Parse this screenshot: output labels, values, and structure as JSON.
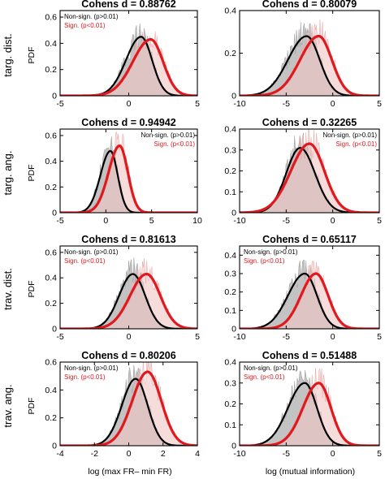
{
  "colors": {
    "nonsig": "#000000",
    "sig": "#e0191f",
    "nonsig_fill": "#b9b9b9",
    "sig_fill": "#f2c4c4"
  },
  "row_labels": [
    "targ. dist.",
    "targ. ang.",
    "trav. dist.",
    "trav. ang."
  ],
  "ylabel": "PDF",
  "xlabels": [
    "log (max FR– min FR)",
    "log (mutual information)"
  ],
  "chart_data": [
    {
      "type": "line",
      "title": "Cohens d = 0.88762",
      "legend": [
        "Non-sign. (p>0.01)",
        "Sign. (p<0.01)"
      ],
      "legend_placement": "top-left",
      "xlim": [
        -5,
        5
      ],
      "ylim": [
        0,
        0.65
      ],
      "xticks": [
        -5,
        0,
        5
      ],
      "yticks": [
        0,
        0.2,
        0.4,
        0.6
      ],
      "ytick_labels": [
        "0",
        "0.2",
        "0.4",
        "0.6"
      ],
      "series": [
        {
          "name": "Non-sign. (p>0.01)",
          "peak_x": 0.9,
          "peak_y": 0.45,
          "sd_left": 1.1,
          "sd_right": 0.8
        },
        {
          "name": "Sign. (p<0.01)",
          "peak_x": 1.6,
          "peak_y": 0.43,
          "sd_left": 1.3,
          "sd_right": 0.9
        }
      ]
    },
    {
      "type": "line",
      "title": "Cohens d = 0.80079",
      "legend": [],
      "legend_placement": "none",
      "xlim": [
        -10,
        5
      ],
      "ylim": [
        0,
        0.4
      ],
      "xticks": [
        -10,
        -5,
        0,
        5
      ],
      "yticks": [
        0,
        0.2,
        0.4
      ],
      "ytick_labels": [
        "0",
        "0.2",
        "0.4"
      ],
      "series": [
        {
          "name": "Non-sign. (p>0.01)",
          "peak_x": -2.8,
          "peak_y": 0.28,
          "sd_left": 2.0,
          "sd_right": 1.4
        },
        {
          "name": "Sign. (p<0.01)",
          "peak_x": -1.5,
          "peak_y": 0.28,
          "sd_left": 2.0,
          "sd_right": 1.4
        }
      ]
    },
    {
      "type": "line",
      "title": "Cohens d = 0.94942",
      "legend": [
        "Non-sign. (p>0.01)",
        "Sign. (p<0.01)"
      ],
      "legend_placement": "top-right",
      "xlim": [
        -5,
        10
      ],
      "ylim": [
        0,
        0.65
      ],
      "xticks": [
        -5,
        0,
        5,
        10
      ],
      "yticks": [
        0,
        0.2,
        0.4,
        0.6
      ],
      "ytick_labels": [
        "0",
        "0.2",
        "0.4",
        "0.6"
      ],
      "series": [
        {
          "name": "Non-sign. (p>0.01)",
          "peak_x": 0.5,
          "peak_y": 0.48,
          "sd_left": 1.1,
          "sd_right": 0.8
        },
        {
          "name": "Sign. (p<0.01)",
          "peak_x": 1.5,
          "peak_y": 0.52,
          "sd_left": 1.2,
          "sd_right": 0.9
        }
      ]
    },
    {
      "type": "line",
      "title": "Cohens d = 0.32265",
      "legend": [
        "Non-sign. (p>0.01)",
        "Sign. (p<0.01)"
      ],
      "legend_placement": "top-right",
      "xlim": [
        -10,
        5
      ],
      "ylim": [
        0,
        0.4
      ],
      "xticks": [
        -10,
        -5,
        0,
        5
      ],
      "yticks": [
        0,
        0.1,
        0.2,
        0.3,
        0.4
      ],
      "ytick_labels": [
        "0",
        "0.1",
        "0.2",
        "0.3",
        "0.4"
      ],
      "series": [
        {
          "name": "Non-sign. (p>0.01)",
          "peak_x": -3.5,
          "peak_y": 0.31,
          "sd_left": 1.5,
          "sd_right": 1.6
        },
        {
          "name": "Sign. (p<0.01)",
          "peak_x": -2.5,
          "peak_y": 0.33,
          "sd_left": 2.0,
          "sd_right": 1.6
        }
      ]
    },
    {
      "type": "line",
      "title": "Cohens d = 0.81613",
      "legend": [
        "Non-sign. (p>0.01)",
        "Sign. (p<0.01)"
      ],
      "legend_placement": "top-left",
      "xlim": [
        -5,
        5
      ],
      "ylim": [
        0,
        0.65
      ],
      "xticks": [
        -5,
        0,
        5
      ],
      "yticks": [
        0,
        0.2,
        0.4,
        0.6
      ],
      "ytick_labels": [
        "0",
        "0.2",
        "0.4",
        "0.6"
      ],
      "series": [
        {
          "name": "Non-sign. (p>0.01)",
          "peak_x": 0.3,
          "peak_y": 0.43,
          "sd_left": 1.0,
          "sd_right": 0.9
        },
        {
          "name": "Sign. (p<0.01)",
          "peak_x": 1.3,
          "peak_y": 0.43,
          "sd_left": 1.2,
          "sd_right": 1.0
        }
      ]
    },
    {
      "type": "line",
      "title": "Cohens d = 0.65117",
      "legend": [
        "Non-sign. (p>0.01)",
        "Sign. (p<0.01)"
      ],
      "legend_placement": "top-left",
      "xlim": [
        -10,
        5
      ],
      "ylim": [
        0,
        0.45
      ],
      "xticks": [
        -10,
        -5,
        0,
        5
      ],
      "yticks": [
        0,
        0.1,
        0.2,
        0.3,
        0.4
      ],
      "ytick_labels": [
        "0",
        "0.1",
        "0.2",
        "0.3",
        "0.4"
      ],
      "series": [
        {
          "name": "Non-sign. (p>0.01)",
          "peak_x": -3.0,
          "peak_y": 0.3,
          "sd_left": 1.8,
          "sd_right": 1.3
        },
        {
          "name": "Sign. (p<0.01)",
          "peak_x": -1.8,
          "peak_y": 0.3,
          "sd_left": 1.6,
          "sd_right": 1.3
        }
      ]
    },
    {
      "type": "line",
      "title": "Cohens d = 0.80206",
      "legend": [
        "Non-sign. (p>0.01)",
        "Sign. (p<0.01)"
      ],
      "legend_placement": "top-left",
      "xlim": [
        -4,
        4
      ],
      "ylim": [
        0,
        0.6
      ],
      "xticks": [
        -4,
        -2,
        0,
        2,
        4
      ],
      "yticks": [
        0,
        0.2,
        0.4,
        0.6
      ],
      "ytick_labels": [
        "0",
        "0.2",
        "0.4",
        "0.6"
      ],
      "series": [
        {
          "name": "Non-sign. (p>0.01)",
          "peak_x": 0.4,
          "peak_y": 0.48,
          "sd_left": 0.8,
          "sd_right": 0.7
        },
        {
          "name": "Sign. (p<0.01)",
          "peak_x": 1.1,
          "peak_y": 0.53,
          "sd_left": 0.9,
          "sd_right": 0.8
        }
      ]
    },
    {
      "type": "line",
      "title": "Cohens d = 0.51488",
      "legend": [
        "Non-sign. (p>0.01)",
        "Sign. (p<0.01)"
      ],
      "legend_placement": "top-left",
      "xlim": [
        -10,
        5
      ],
      "ylim": [
        0,
        0.4
      ],
      "xticks": [
        -10,
        -5,
        0,
        5
      ],
      "yticks": [
        0,
        0.1,
        0.2,
        0.3,
        0.4
      ],
      "ytick_labels": [
        "0",
        "0.1",
        "0.2",
        "0.3",
        "0.4"
      ],
      "series": [
        {
          "name": "Non-sign. (p>0.01)",
          "peak_x": -3.0,
          "peak_y": 0.3,
          "sd_left": 1.8,
          "sd_right": 1.3
        },
        {
          "name": "Sign. (p<0.01)",
          "peak_x": -1.5,
          "peak_y": 0.3,
          "sd_left": 1.7,
          "sd_right": 1.3
        }
      ]
    }
  ]
}
